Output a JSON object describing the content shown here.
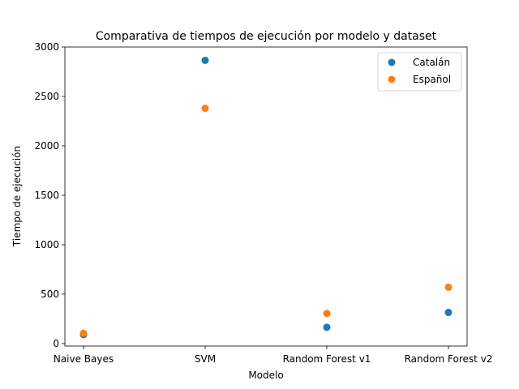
{
  "chart_data": {
    "type": "scatter",
    "title": "Comparativa de tiempos de ejecución por modelo y dataset",
    "xlabel": "Modelo",
    "ylabel": "Tiempo de ejecución",
    "categories": [
      "Naive Bayes",
      "SVM",
      "Random Forest v1",
      "Random Forest v2"
    ],
    "ylim": [
      -25,
      3000
    ],
    "yticks": [
      0,
      500,
      1000,
      1500,
      2000,
      2500,
      3000
    ],
    "grid": false,
    "legend_position": "top-right",
    "series": [
      {
        "name": "Catalán",
        "color": "#1f77b4",
        "values": [
          90,
          2865,
          165,
          315
        ]
      },
      {
        "name": "Español",
        "color": "#ff7f0e",
        "values": [
          105,
          2380,
          305,
          570
        ]
      }
    ]
  }
}
